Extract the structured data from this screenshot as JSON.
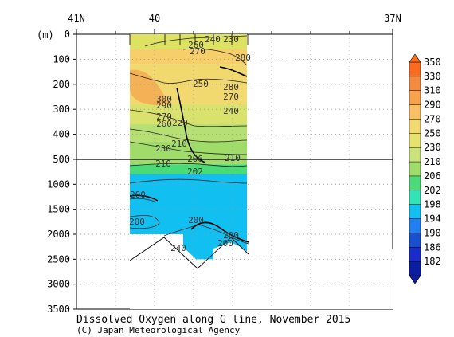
{
  "chart_data": {
    "type": "heatmap",
    "title": "Dissolved Oxygen along G line, November 2015",
    "credit": "(C) Japan Meteorological Agency",
    "y_unit": "(m)",
    "x_ticks": [
      "41N",
      "40",
      "37N"
    ],
    "y_ticks": [
      "0",
      "100",
      "200",
      "300",
      "400",
      "500",
      "1000",
      "1500",
      "2000",
      "2500",
      "3000",
      "3500"
    ],
    "y_upper_range": [
      0,
      500
    ],
    "y_lower_range": [
      500,
      3500
    ],
    "colorbar": {
      "levels": [
        350,
        330,
        310,
        290,
        270,
        250,
        230,
        210,
        206,
        202,
        198,
        194,
        190,
        186,
        182
      ],
      "colors": [
        "#fe6b1c",
        "#f48a40",
        "#f9a24e",
        "#f8c063",
        "#f1d86f",
        "#e6e26c",
        "#c9e27a",
        "#a0dc6a",
        "#4bda78",
        "#33e3b8",
        "#11c0f1",
        "#1f80f4",
        "#1950d0",
        "#1a2dcb",
        "#0b1da3"
      ]
    },
    "bands": [
      {
        "top": 0,
        "bottom": 60,
        "color": "#dde262",
        "label": "250"
      },
      {
        "top": 60,
        "bottom": 120,
        "color": "#f6cf6a",
        "label": "280"
      },
      {
        "top": 120,
        "bottom": 280,
        "color": "#f1d86f",
        "label": "270"
      },
      {
        "top": 280,
        "bottom": 360,
        "color": "#d9e26d",
        "label": "250"
      },
      {
        "top": 360,
        "bottom": 430,
        "color": "#b6df74",
        "label": "230"
      },
      {
        "top": 430,
        "bottom": 600,
        "color": "#a0dc6a",
        "label": "210"
      },
      {
        "top": 600,
        "bottom": 800,
        "color": "#4bda78",
        "label": "206"
      },
      {
        "top": 800,
        "bottom": 2500,
        "color": "#11c0f1",
        "label": "198"
      }
    ],
    "contour_labels": [
      "240",
      "230",
      "260",
      "270",
      "280",
      "250",
      "300",
      "290",
      "280",
      "270",
      "240",
      "270",
      "260",
      "220",
      "230",
      "210",
      "210",
      "206",
      "210",
      "202",
      "200",
      "200",
      "200",
      "200",
      "200",
      "240"
    ]
  }
}
